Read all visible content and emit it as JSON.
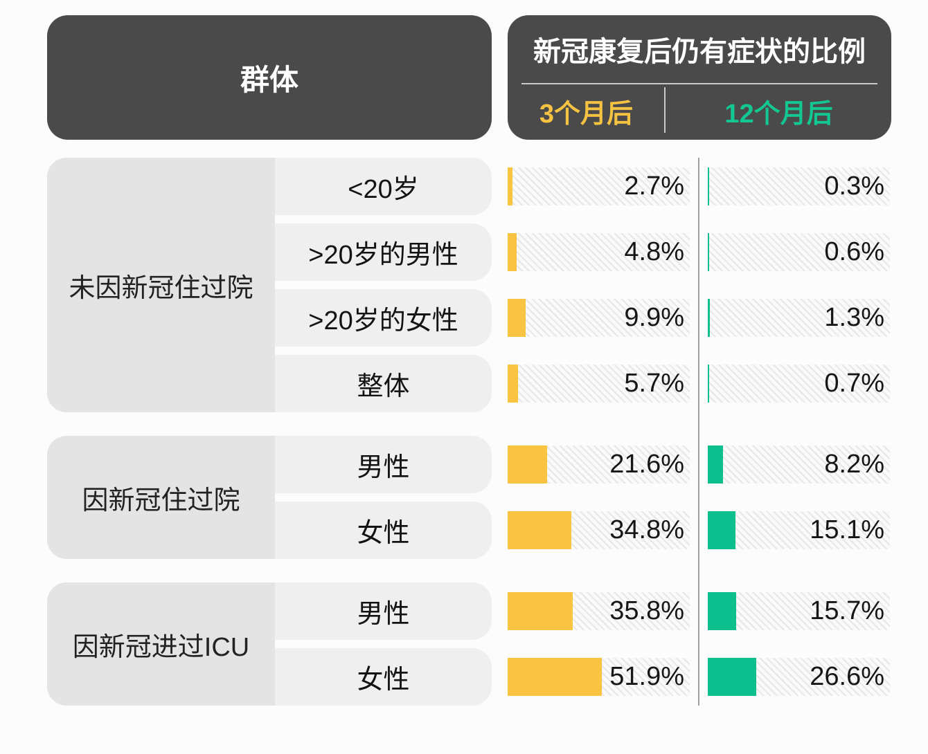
{
  "page": {
    "accent_green": "#0cbf8c",
    "accent_yellow": "#f9c441",
    "header_bg": "#4a4a4a",
    "group_bg": "#e4e4e4",
    "row_bg": "#efefef"
  },
  "header": {
    "group_column_title": "群体",
    "value_column_title": "新冠康复后仍有症状的比例",
    "sub_columns": [
      {
        "label": "3个月后",
        "color": "#f5c242"
      },
      {
        "label": "12个月后",
        "color": "#12c792"
      }
    ]
  },
  "chart_data": {
    "type": "bar",
    "title": "新冠康复后仍有症状的比例",
    "group_axis_label": "群体",
    "series": [
      "3个月后",
      "12个月后"
    ],
    "series_colors": [
      "#f9c441",
      "#0cbf8c"
    ],
    "unit": "%",
    "axis_max": 100,
    "groups": [
      {
        "label": "未因新冠住过院",
        "rows": [
          {
            "label": "<20岁",
            "values": [
              2.7,
              0.3
            ]
          },
          {
            "label": ">20岁的男性",
            "values": [
              4.8,
              0.6
            ]
          },
          {
            "label": ">20岁的女性",
            "values": [
              9.9,
              1.3
            ]
          },
          {
            "label": "整体",
            "values": [
              5.7,
              0.7
            ]
          }
        ]
      },
      {
        "label": "因新冠住过院",
        "rows": [
          {
            "label": "男性",
            "values": [
              21.6,
              8.2
            ]
          },
          {
            "label": "女性",
            "values": [
              34.8,
              15.1
            ]
          }
        ]
      },
      {
        "label": "因新冠进过ICU",
        "rows": [
          {
            "label": "男性",
            "values": [
              35.8,
              15.7
            ]
          },
          {
            "label": "女性",
            "values": [
              51.9,
              26.6
            ]
          }
        ]
      }
    ]
  }
}
